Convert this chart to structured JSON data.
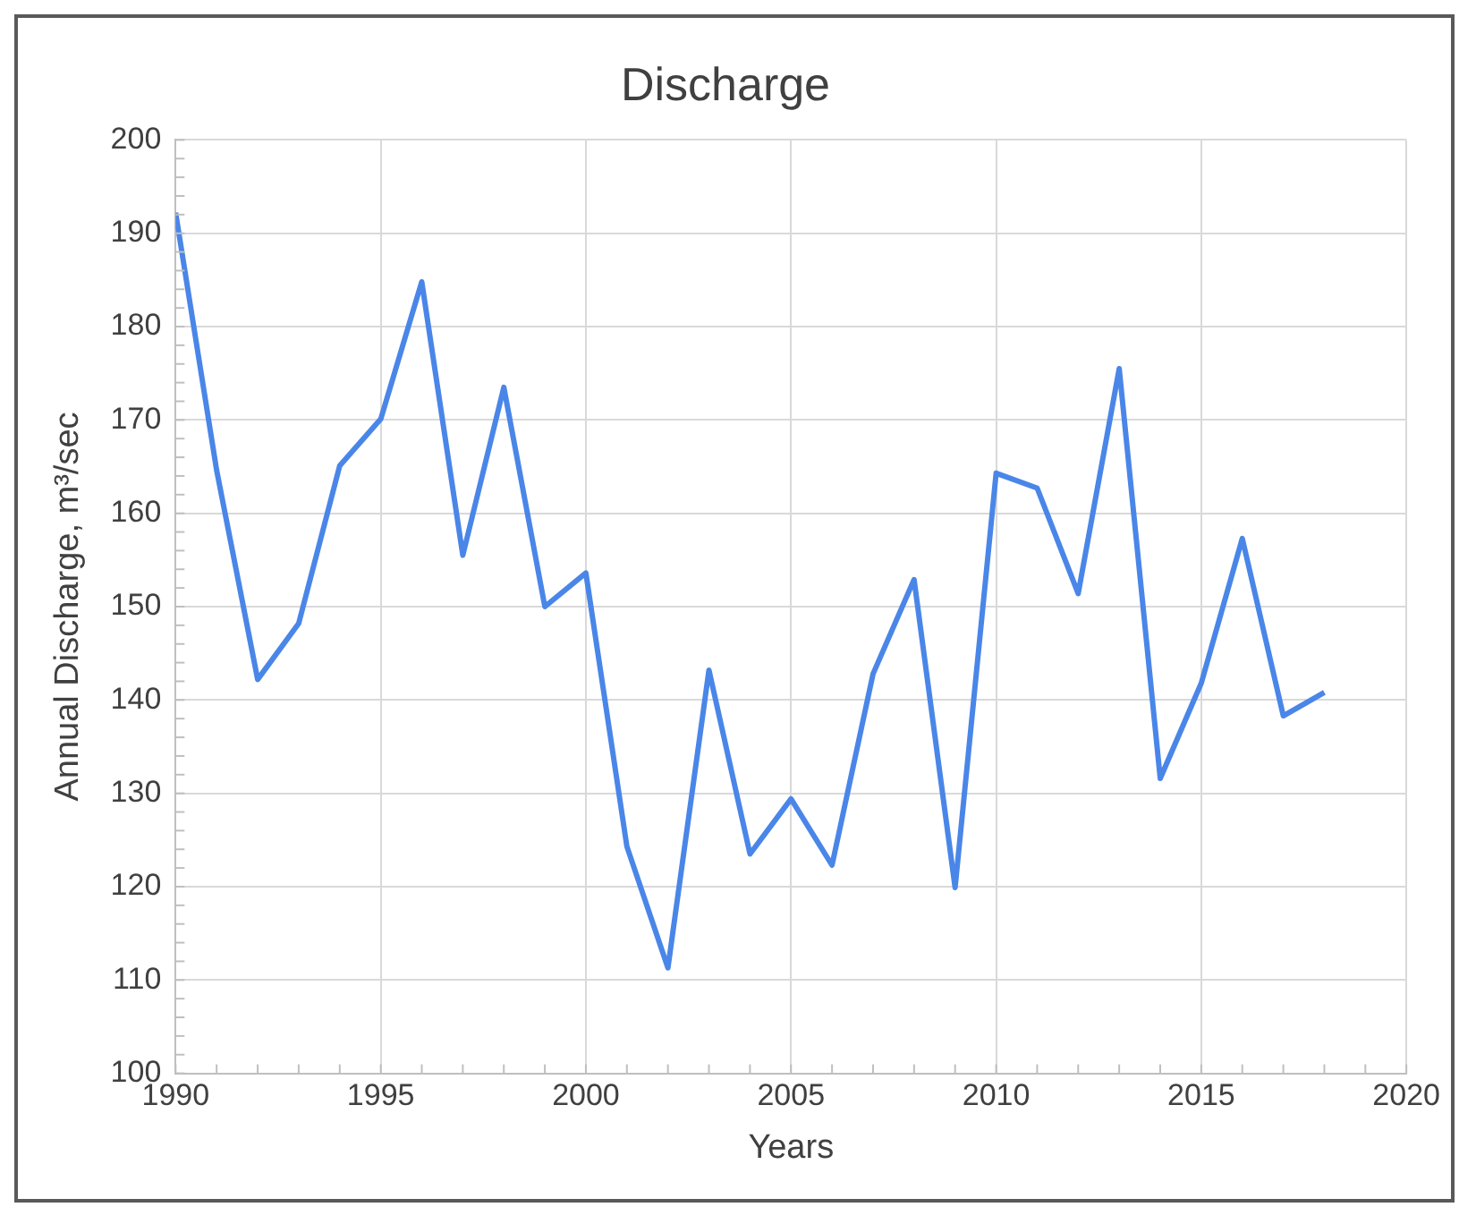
{
  "chart_data": {
    "type": "line",
    "title": "Discharge",
    "xlabel": "Years",
    "ylabel": "Annual Discharge, m³/sec",
    "x": [
      1990,
      1991,
      1992,
      1993,
      1994,
      1995,
      1996,
      1997,
      1998,
      1999,
      2000,
      2001,
      2002,
      2003,
      2004,
      2005,
      2006,
      2007,
      2008,
      2009,
      2010,
      2011,
      2012,
      2013,
      2014,
      2015,
      2016,
      2017,
      2018
    ],
    "series": [
      {
        "color": "#4a86e8",
        "values": [
          192.2,
          164.6,
          142.2,
          148.2,
          165.1,
          170.1,
          184.8,
          155.5,
          173.5,
          150.0,
          153.6,
          124.3,
          111.3,
          143.2,
          123.5,
          129.4,
          122.3,
          142.8,
          152.9,
          119.9,
          164.3,
          162.7,
          151.4,
          175.5,
          131.6,
          141.8,
          157.3,
          138.3,
          140.8
        ]
      }
    ],
    "xlim": [
      1990,
      2020
    ],
    "xticks": [
      1990,
      1995,
      2000,
      2005,
      2010,
      2015,
      2020
    ],
    "ylim": [
      100,
      200
    ],
    "yticks": [
      100,
      110,
      120,
      130,
      140,
      150,
      160,
      170,
      180,
      190,
      200
    ],
    "grid": true,
    "marker": "none",
    "line_style": "solid"
  }
}
